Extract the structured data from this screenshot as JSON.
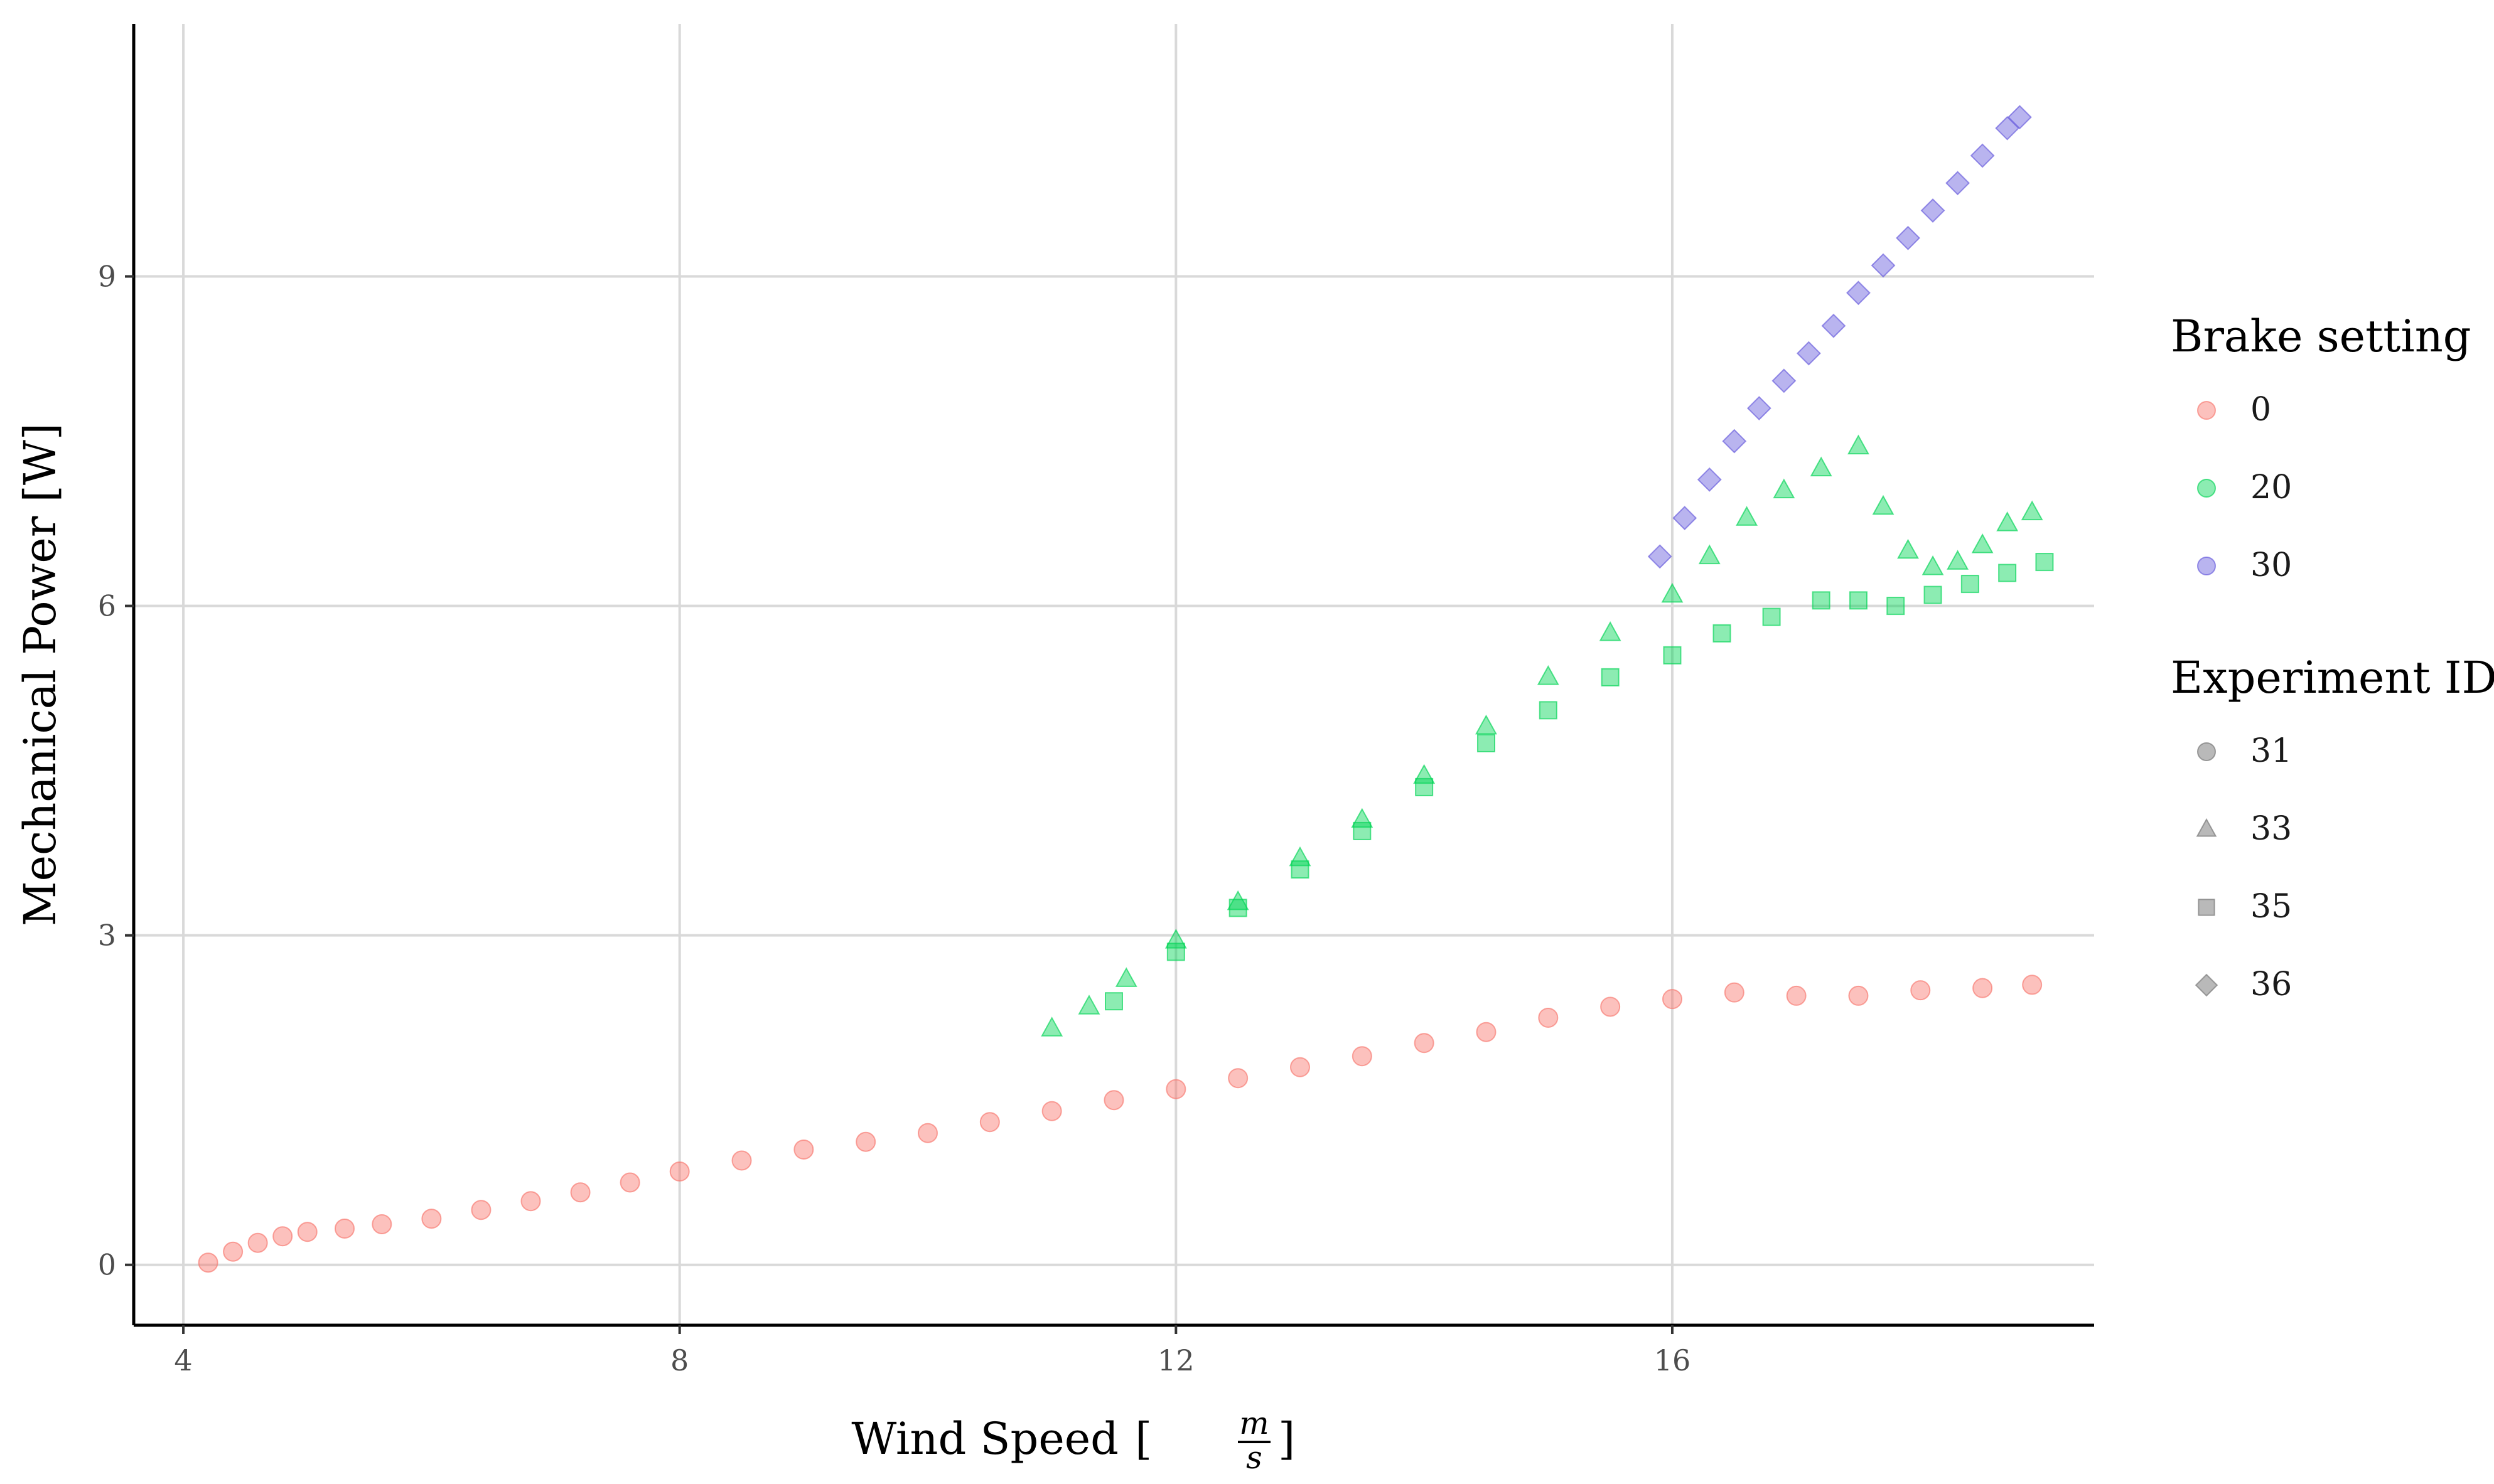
{
  "chart_data": {
    "type": "scatter",
    "xlabel": "Wind Speed",
    "xlabel_unit_numerator": "m",
    "xlabel_unit_denominator": "s",
    "ylabel": "Mechanical Power [W]",
    "xlim": [
      3.6,
      19.4
    ],
    "ylim": [
      -0.55,
      11.3
    ],
    "x_ticks": [
      4,
      8,
      12,
      16
    ],
    "y_ticks": [
      0,
      3,
      6,
      9
    ],
    "x_tick_labels": [
      "4",
      "8",
      "12",
      "16"
    ],
    "y_tick_labels": [
      "0",
      "3",
      "6",
      "9"
    ],
    "grid": "major",
    "legend_position": "right",
    "legends": [
      {
        "title": "Brake setting",
        "items": [
          {
            "label": "0",
            "color": "#F8766D",
            "shape": "circle"
          },
          {
            "label": "20",
            "color": "#00D454",
            "shape": "circle"
          },
          {
            "label": "30",
            "color": "#6458DC",
            "shape": "circle"
          }
        ]
      },
      {
        "title": "Experiment ID",
        "items": [
          {
            "label": "31",
            "color": "#7f7f7f",
            "shape": "circle"
          },
          {
            "label": "33",
            "color": "#7f7f7f",
            "shape": "triangle"
          },
          {
            "label": "35",
            "color": "#7f7f7f",
            "shape": "square"
          },
          {
            "label": "36",
            "color": "#7f7f7f",
            "shape": "diamond"
          }
        ]
      }
    ],
    "series": [
      {
        "brake": "0",
        "experiment": "31",
        "shape": "circle",
        "color": "#F8766D",
        "x": [
          4.2,
          4.4,
          4.6,
          4.8,
          5.0,
          5.3,
          5.6,
          6.0,
          6.4,
          6.8,
          7.2,
          7.6,
          8.0,
          8.5,
          9.0,
          9.5,
          10.0,
          10.5,
          11.0,
          11.5,
          12.0,
          12.5,
          13.0,
          13.5,
          14.0,
          14.5,
          15.0,
          15.5,
          16.0,
          16.5,
          17.0,
          17.5,
          18.0,
          18.5,
          18.9
        ],
        "y": [
          0.02,
          0.12,
          0.2,
          0.26,
          0.3,
          0.33,
          0.37,
          0.42,
          0.5,
          0.58,
          0.66,
          0.75,
          0.85,
          0.95,
          1.05,
          1.12,
          1.2,
          1.3,
          1.4,
          1.5,
          1.6,
          1.7,
          1.8,
          1.9,
          2.02,
          2.12,
          2.25,
          2.35,
          2.42,
          2.48,
          2.45,
          2.45,
          2.5,
          2.52,
          2.55
        ]
      },
      {
        "brake": "20",
        "experiment": "33",
        "shape": "triangle",
        "color": "#00D454",
        "x": [
          11.0,
          11.3,
          11.6,
          12.0,
          12.5,
          13.0,
          13.5,
          14.0,
          14.5,
          15.0,
          15.5,
          16.0,
          16.3,
          16.6,
          16.9,
          17.2,
          17.5,
          17.7,
          17.9,
          18.1,
          18.3,
          18.5,
          18.7,
          18.9
        ],
        "y": [
          2.15,
          2.35,
          2.6,
          2.95,
          3.3,
          3.7,
          4.05,
          4.45,
          4.9,
          5.35,
          5.75,
          6.1,
          6.45,
          6.8,
          7.05,
          7.25,
          7.45,
          6.9,
          6.5,
          6.35,
          6.4,
          6.55,
          6.75,
          6.85
        ]
      },
      {
        "brake": "20",
        "experiment": "35",
        "shape": "square",
        "color": "#00D454",
        "x": [
          11.5,
          12.0,
          12.5,
          13.0,
          13.5,
          14.0,
          14.5,
          15.0,
          15.5,
          16.0,
          16.4,
          16.8,
          17.2,
          17.5,
          17.8,
          18.1,
          18.4,
          18.7,
          19.0
        ],
        "y": [
          2.4,
          2.85,
          3.25,
          3.6,
          3.95,
          4.35,
          4.75,
          5.05,
          5.35,
          5.55,
          5.75,
          5.9,
          6.05,
          6.05,
          6.0,
          6.1,
          6.2,
          6.3,
          6.4
        ]
      },
      {
        "brake": "30",
        "experiment": "36",
        "shape": "diamond",
        "color": "#6458DC",
        "x": [
          15.9,
          16.1,
          16.3,
          16.5,
          16.7,
          16.9,
          17.1,
          17.3,
          17.5,
          17.7,
          17.9,
          18.1,
          18.3,
          18.5,
          18.7,
          18.8
        ],
        "y": [
          6.45,
          6.8,
          7.15,
          7.5,
          7.8,
          8.05,
          8.3,
          8.55,
          8.85,
          9.1,
          9.35,
          9.6,
          9.85,
          10.1,
          10.35,
          10.45
        ]
      }
    ]
  }
}
